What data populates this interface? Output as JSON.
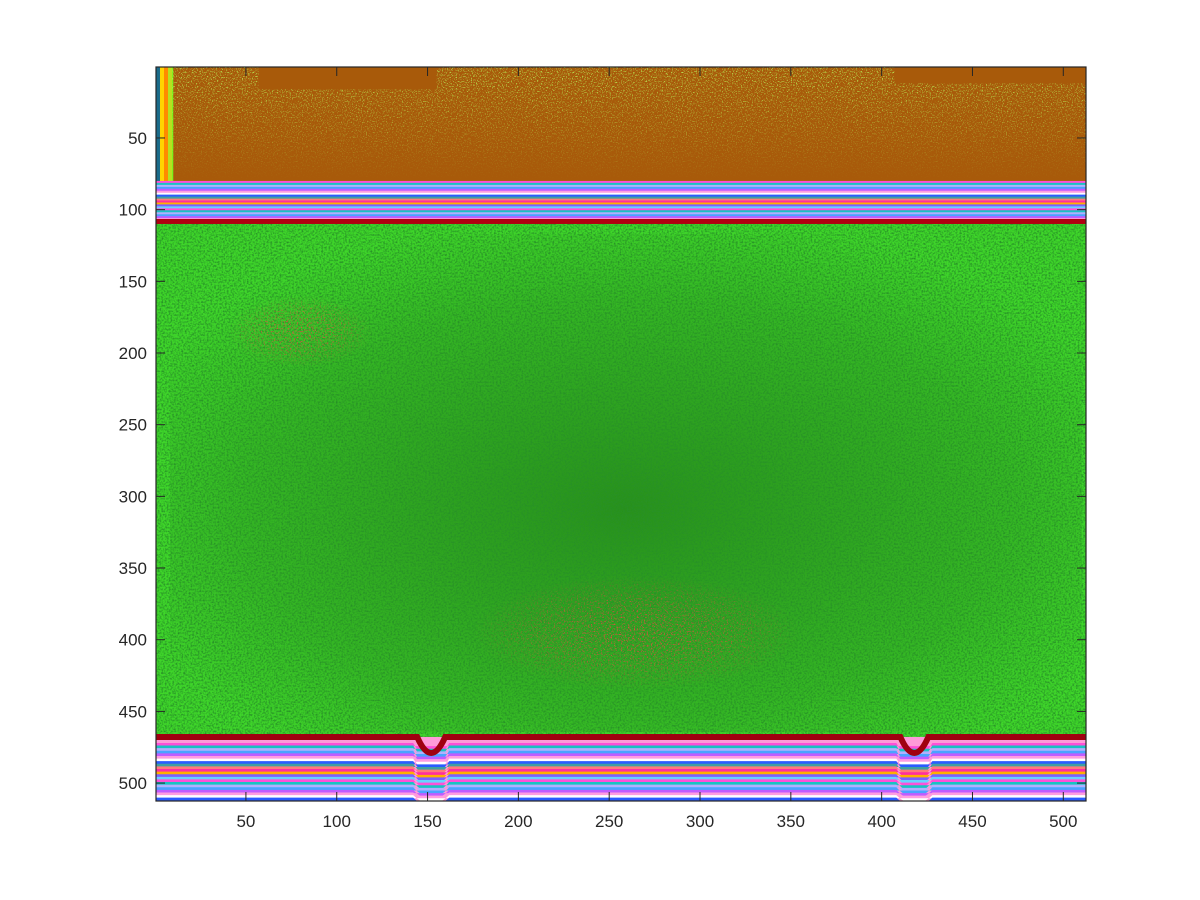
{
  "chart_data": {
    "type": "heatmap",
    "title": "",
    "xlabel": "",
    "ylabel": "",
    "xlim": [
      0.5,
      512.5
    ],
    "ylim": [
      0.5,
      512.5
    ],
    "y_reversed": true,
    "grid": false,
    "legend": "none",
    "xticks": [
      50,
      100,
      150,
      200,
      250,
      300,
      350,
      400,
      450,
      500
    ],
    "yticks": [
      50,
      100,
      150,
      200,
      250,
      300,
      350,
      400,
      450,
      500
    ],
    "xtick_labels": [
      "50",
      "100",
      "150",
      "200",
      "250",
      "300",
      "350",
      "400",
      "450",
      "500"
    ],
    "ytick_labels": [
      "50",
      "100",
      "150",
      "200",
      "250",
      "300",
      "350",
      "400",
      "450",
      "500"
    ],
    "colors": {
      "axis": "#262626",
      "green_bright": "#3fd62a",
      "green_dark": "#1f6a1f",
      "red": "#e01010",
      "brown": "#a85a0a",
      "lime": "#7cf21c"
    },
    "regions": [
      {
        "name": "top-band",
        "rows": [
          1,
          80
        ],
        "cols": [
          10,
          512
        ],
        "fill": "brown",
        "speckle": "lime"
      },
      {
        "name": "upper-stripes",
        "rows": [
          80,
          110
        ],
        "cols": [
          1,
          512
        ],
        "fill": "multicolor-stripes"
      },
      {
        "name": "main-field",
        "rows": [
          110,
          470
        ],
        "cols": [
          1,
          512
        ],
        "fill": "green-noise"
      },
      {
        "name": "red-cluster-upper-left",
        "center": [
          80,
          185
        ],
        "spread": [
          40,
          25
        ],
        "fill": "red"
      },
      {
        "name": "red-cluster-center",
        "center": [
          265,
          395
        ],
        "spread": [
          90,
          40
        ],
        "fill": "red"
      },
      {
        "name": "lower-stripes",
        "rows": [
          472,
          512
        ],
        "cols": [
          1,
          512
        ],
        "fill": "multicolor-stripes",
        "dips_at_cols": [
          152,
          418
        ]
      }
    ]
  }
}
